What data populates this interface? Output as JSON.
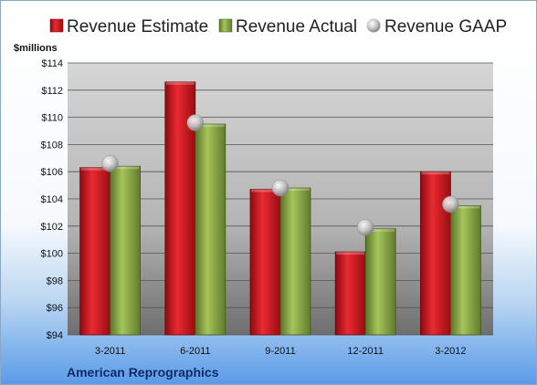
{
  "chart_data": {
    "type": "bar",
    "categories": [
      "3-2011",
      "6-2011",
      "9-2011",
      "12-2011",
      "3-2012"
    ],
    "series": [
      {
        "name": "Revenue Estimate",
        "values": [
          106.3,
          112.6,
          104.7,
          100.1,
          106.0
        ],
        "color": "#c8141c"
      },
      {
        "name": "Revenue Actual",
        "values": [
          106.4,
          109.5,
          104.8,
          101.8,
          103.5
        ],
        "color": "#7f9d3c"
      },
      {
        "name": "Revenue GAAP",
        "values": [
          106.6,
          109.6,
          104.8,
          101.9,
          103.6
        ],
        "color": "#b8b8b8",
        "marker": "sphere"
      }
    ],
    "ylabel": "$millions",
    "ylim": [
      94,
      114
    ],
    "yticks": [
      "$94",
      "$96",
      "$98",
      "$100",
      "$102",
      "$104",
      "$106",
      "$108",
      "$110",
      "$112",
      "$114"
    ],
    "grid": true,
    "legend": "top",
    "footer": "American Reprographics"
  }
}
